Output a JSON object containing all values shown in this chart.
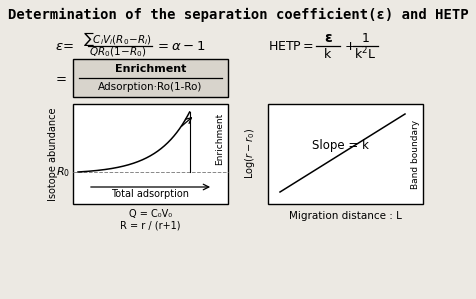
{
  "title": "Determination of the separation coefficient(ε) and HETP",
  "title_fontsize": 10,
  "bg_color": "#ece9e3",
  "box_bg": "#d8d4cc",
  "graph_bg": "#ffffff",
  "left_graph_bottom_notes": [
    "Q = C₀V₀",
    "R = r / (r+1)"
  ],
  "right_graph_xlabel": "Migration distance : L",
  "right_graph_right_label": "Band boundary",
  "right_graph_slope_label": "Slope = k",
  "left_graph_R0_label": "R₀",
  "left_graph_right_label": "Enrichment",
  "left_graph_bottom_label": "Total adsorption",
  "left_graph_ylabel": "Isotope abundance",
  "right_graph_ylabel": "Log(r − r₀)"
}
